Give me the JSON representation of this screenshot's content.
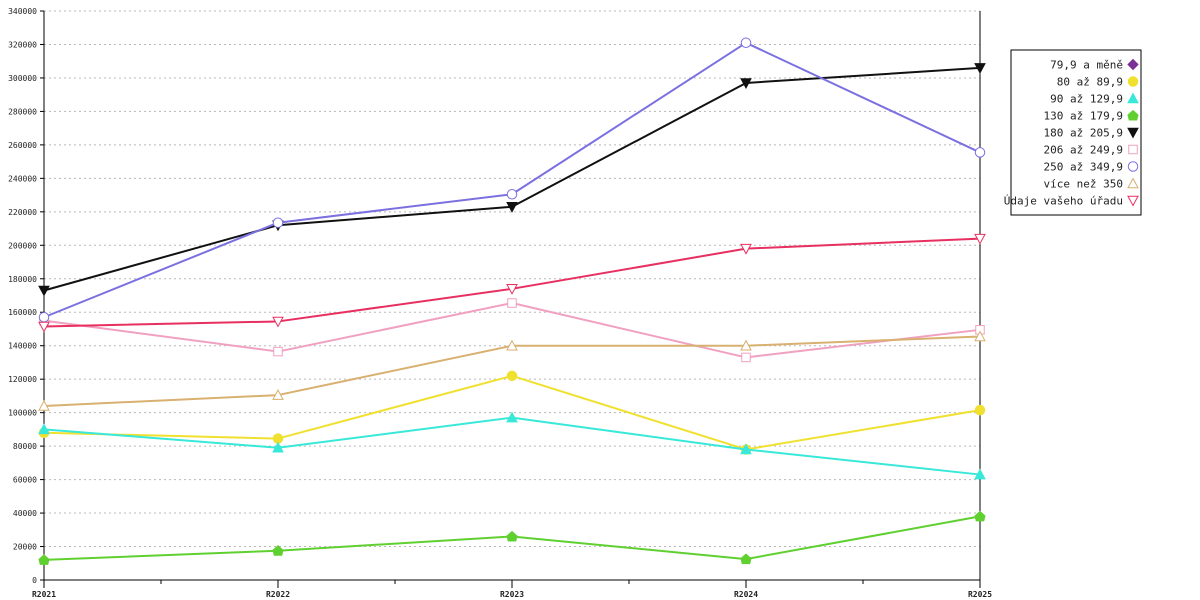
{
  "chart_data": {
    "type": "line",
    "title": "",
    "xlabel": "",
    "ylabel": "",
    "categories": [
      "R2021",
      "R2022",
      "R2023",
      "R2024",
      "R2025"
    ],
    "ylim": [
      0,
      340000
    ],
    "yticks": [
      "0",
      "20000",
      "40000",
      "60000",
      "80000",
      "100000",
      "120000",
      "140000",
      "160000",
      "180000",
      "200000",
      "220000",
      "240000",
      "260000",
      "280000",
      "300000",
      "320000",
      "340000"
    ],
    "grid": true,
    "legend_position": "right",
    "series": [
      {
        "name": "79,9 a měně",
        "color": "#7b3294",
        "marker": "diamond",
        "values": [
          null,
          null,
          null,
          null,
          null
        ]
      },
      {
        "name": "80 až 89,9",
        "color": "#f0e030",
        "marker": "circle-filled",
        "values": [
          88000,
          84500,
          122000,
          78000,
          101500
        ]
      },
      {
        "name": "90 až 129,9",
        "color": "#38e8d8",
        "marker": "triangle-up-filled",
        "values": [
          90000,
          79000,
          97000,
          78000,
          63000
        ]
      },
      {
        "name": "130 až 179,9",
        "color": "#5fd030",
        "marker": "house-filled",
        "values": [
          12000,
          17500,
          26000,
          12500,
          38000
        ]
      },
      {
        "name": "180 až 205,9",
        "color": "#111111",
        "marker": "triangle-down-filled",
        "values": [
          173000,
          212000,
          223000,
          297000,
          306000
        ]
      },
      {
        "name": "206 až 249,9",
        "color": "#f0a0c0",
        "marker": "square-open",
        "values": [
          155000,
          136500,
          165500,
          133000,
          149500
        ]
      },
      {
        "name": "250 až 349,9",
        "color": "#7b70e0",
        "marker": "circle-open",
        "values": [
          157000,
          213500,
          230500,
          321000,
          255500
        ]
      },
      {
        "name": "více než 350",
        "color": "#d8b070",
        "marker": "triangle-up-open",
        "values": [
          104000,
          110500,
          140000,
          140000,
          145500
        ]
      },
      {
        "name": "Údaje vašeho úřadu",
        "color": "#e83060",
        "marker": "triangle-down-open",
        "values": [
          151500,
          154500,
          174000,
          198000,
          204000
        ]
      }
    ]
  }
}
